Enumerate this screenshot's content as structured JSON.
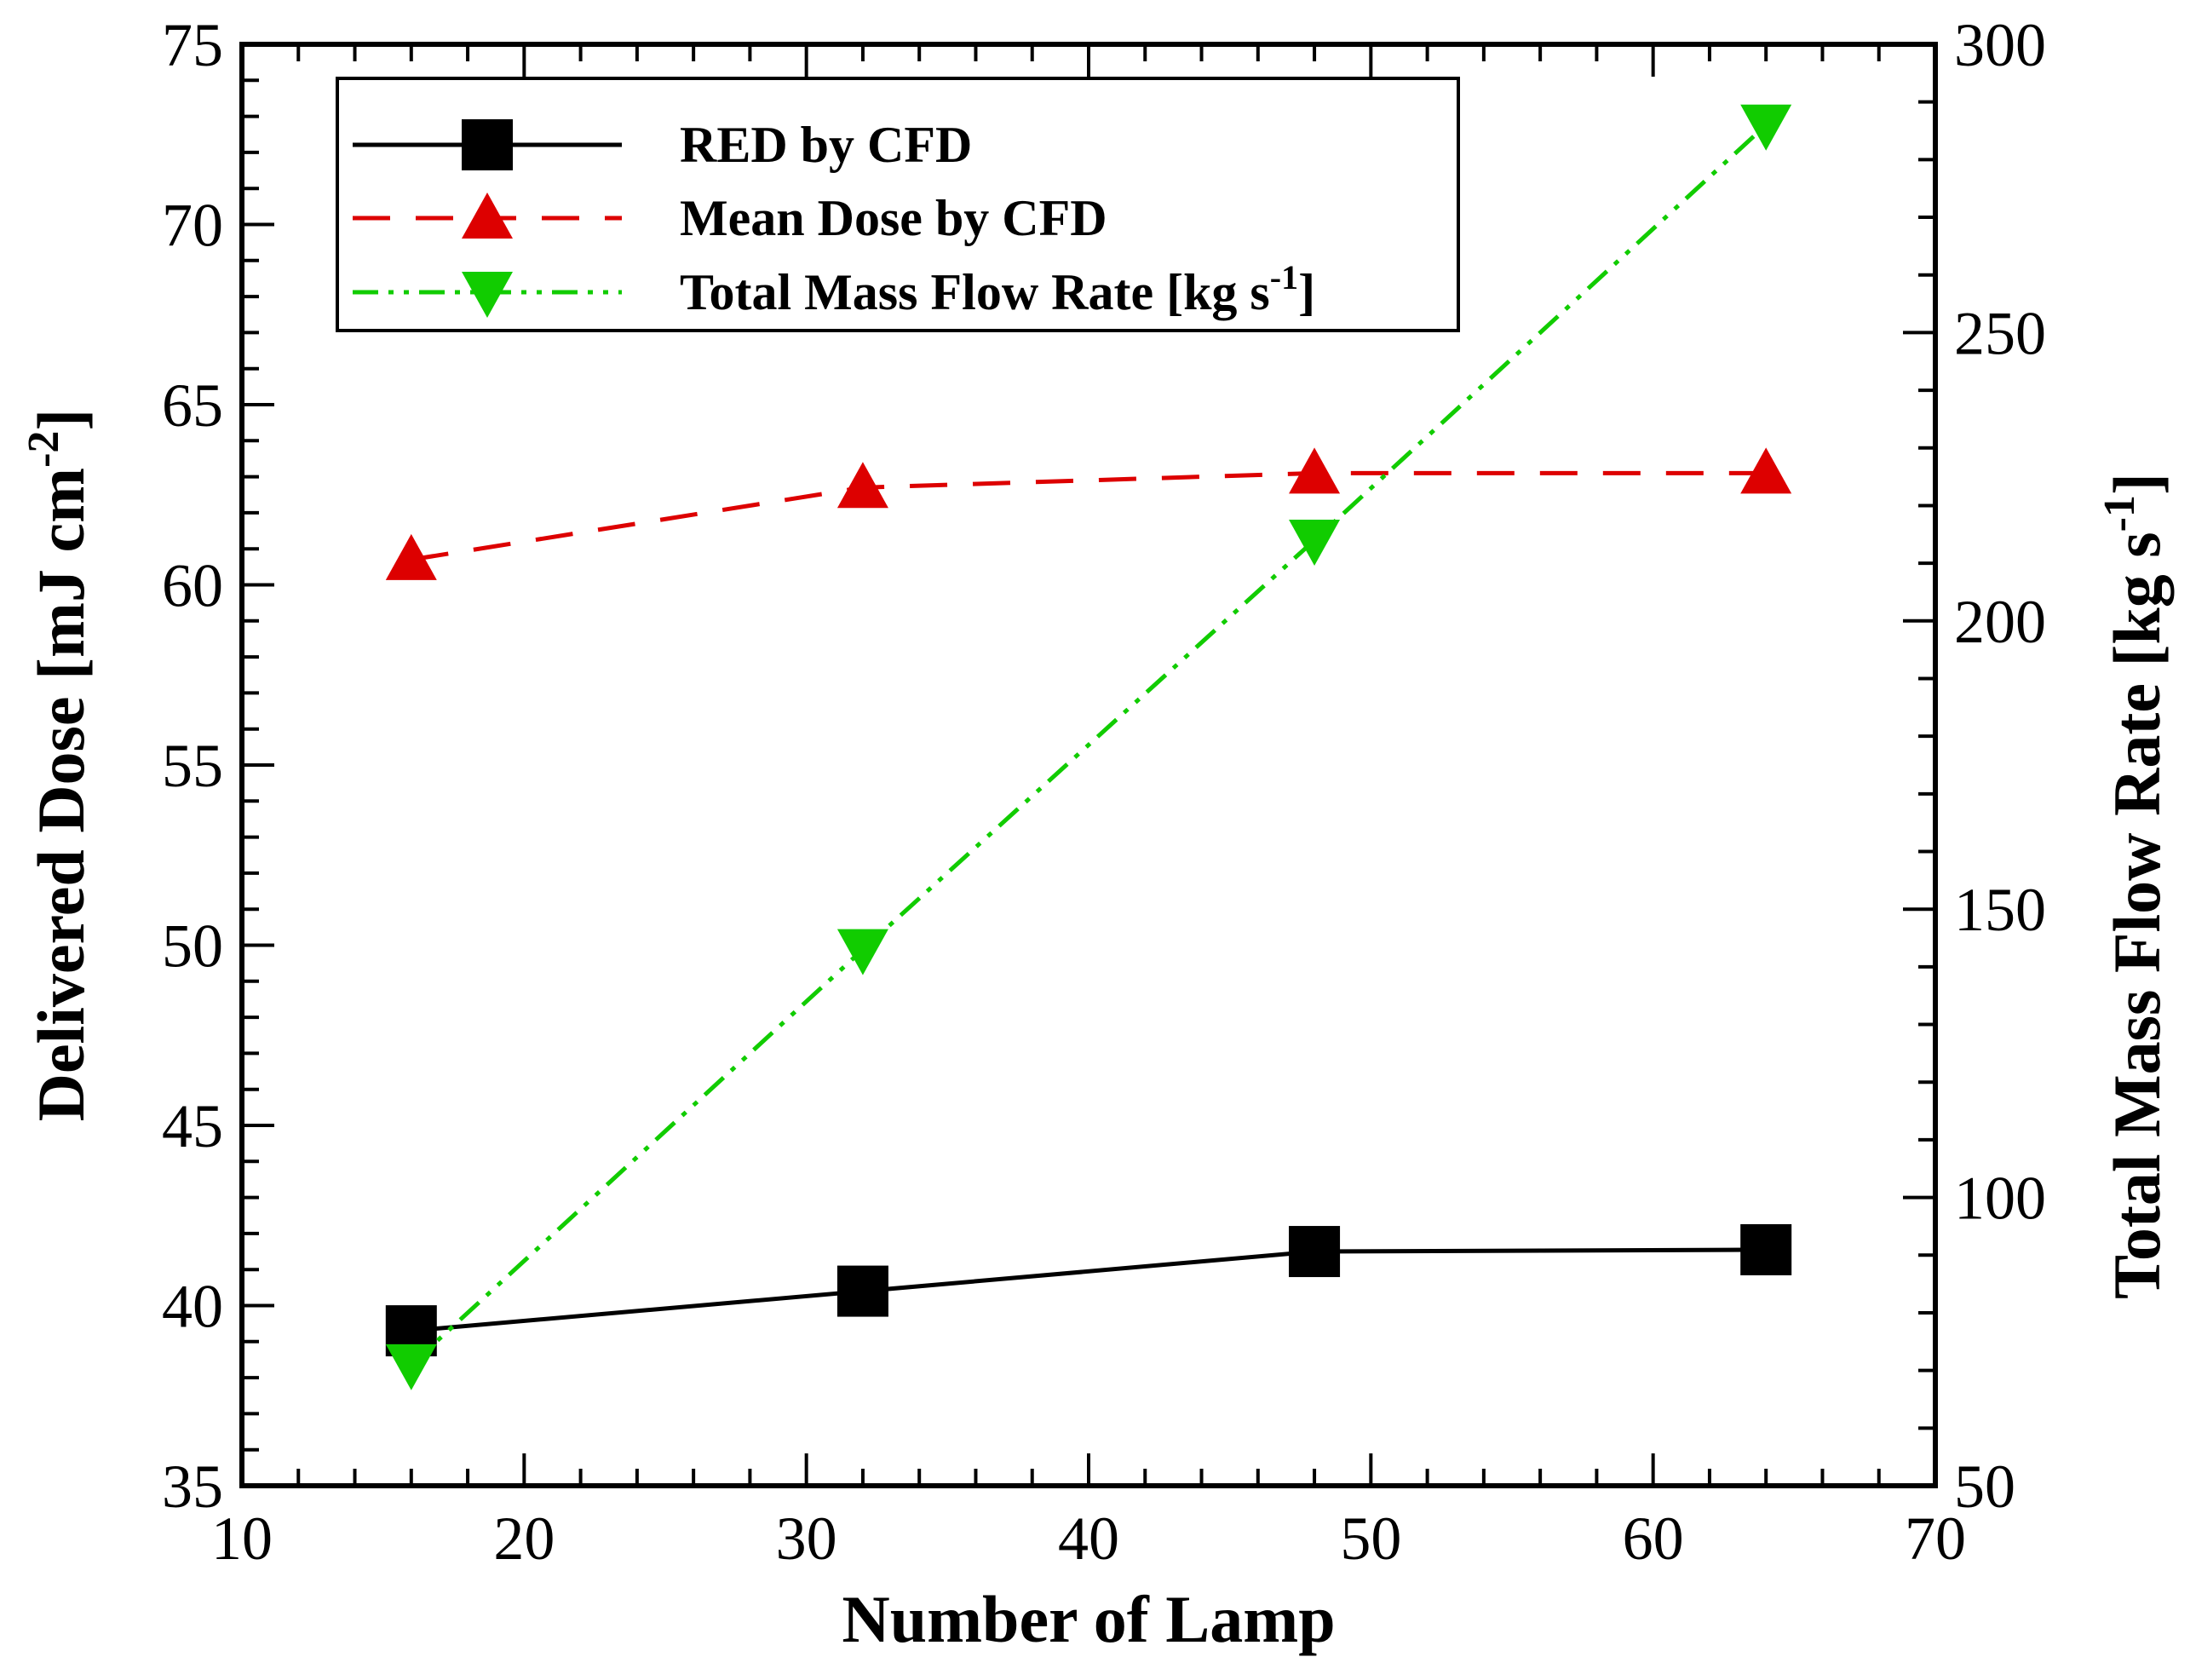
{
  "chart_data": {
    "type": "line",
    "title": "",
    "xlabel": "Number of Lamp",
    "ylabel_left": {
      "main": "Delivered Dose [mJ cm",
      "sup": "-2",
      "end": "]"
    },
    "ylabel_right": {
      "main": "Total Mass Flow Rate [kg s",
      "sup": "-1",
      "end": "]"
    },
    "xlim": [
      10,
      70
    ],
    "ylim_left": [
      35,
      75
    ],
    "ylim_right": [
      50,
      300
    ],
    "xticks": [
      "10",
      "20",
      "30",
      "40",
      "50",
      "60",
      "70"
    ],
    "yticks_left": [
      "35",
      "40",
      "45",
      "50",
      "55",
      "60",
      "65",
      "70",
      "75"
    ],
    "yticks_right": [
      "50",
      "100",
      "150",
      "200",
      "250",
      "300"
    ],
    "legend_position": "top-left",
    "x": [
      16,
      32,
      48,
      64
    ],
    "series": [
      {
        "name": "RED by CFD",
        "axis": "left",
        "values": [
          39.3,
          40.4,
          41.5,
          41.55
        ],
        "color": "#000000",
        "line_style": "solid",
        "marker": "square"
      },
      {
        "name": "Mean Dose by CFD",
        "axis": "left",
        "values": [
          60.7,
          62.7,
          63.1,
          63.1
        ],
        "color": "#dd0000",
        "line_style": "dashed",
        "marker": "triangle-up"
      },
      {
        "name": "Total Mass Flow Rate [kg s",
        "name_sup": "-1",
        "name_end": "]",
        "axis": "right",
        "values": [
          71,
          143,
          214,
          286
        ],
        "color": "#11cc00",
        "line_style": "dash-dot-dot",
        "marker": "triangle-down"
      }
    ]
  }
}
